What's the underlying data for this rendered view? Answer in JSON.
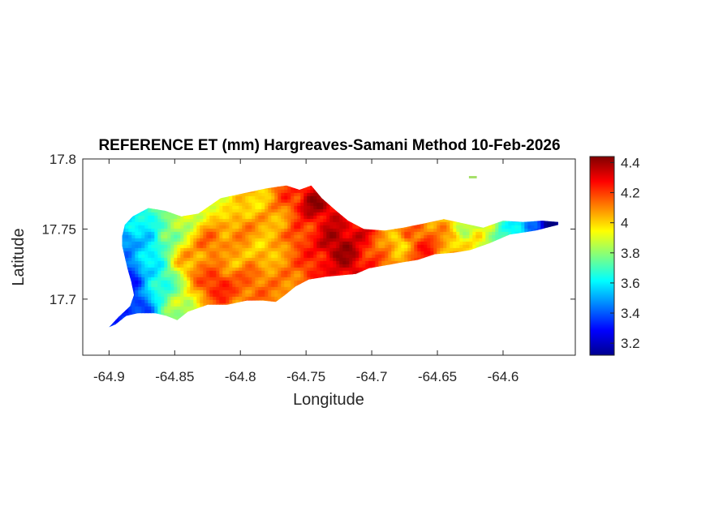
{
  "chart_data": {
    "type": "heatmap",
    "title": "REFERENCE ET (mm) Hargreaves-Samani Method  10-Feb-2026",
    "xlabel": "Longitude",
    "ylabel": "Latitude",
    "xlim": [
      -64.92,
      -64.545
    ],
    "ylim": [
      17.66,
      17.8
    ],
    "xticks": [
      -64.9,
      -64.85,
      -64.8,
      -64.75,
      -64.7,
      -64.65,
      -64.6
    ],
    "xtick_labels": [
      "-64.9",
      "-64.85",
      "-64.8",
      "-64.75",
      "-64.7",
      "-64.65",
      "-64.6"
    ],
    "yticks": [
      17.7,
      17.75,
      17.8
    ],
    "ytick_labels": [
      "17.7",
      "17.75",
      "17.8"
    ],
    "colorbar": {
      "colormap": "jet",
      "range": [
        3.12,
        4.44
      ],
      "ticks": [
        3.2,
        3.4,
        3.6,
        3.8,
        4.0,
        4.2,
        4.4
      ],
      "tick_labels": [
        "3.2",
        "3.4",
        "3.6",
        "3.8",
        "4",
        "4.2",
        "4.4"
      ]
    },
    "grid": false,
    "outline": [
      [
        -64.9,
        17.68
      ],
      [
        -64.893,
        17.687
      ],
      [
        -64.884,
        17.695
      ],
      [
        -64.881,
        17.703
      ],
      [
        -64.883,
        17.712
      ],
      [
        -64.886,
        17.722
      ],
      [
        -64.888,
        17.73
      ],
      [
        -64.89,
        17.738
      ],
      [
        -64.89,
        17.745
      ],
      [
        -64.888,
        17.753
      ],
      [
        -64.882,
        17.759
      ],
      [
        -64.87,
        17.765
      ],
      [
        -64.857,
        17.763
      ],
      [
        -64.845,
        17.759
      ],
      [
        -64.832,
        17.761
      ],
      [
        -64.815,
        17.772
      ],
      [
        -64.795,
        17.776
      ],
      [
        -64.78,
        17.779
      ],
      [
        -64.765,
        17.781
      ],
      [
        -64.755,
        17.778
      ],
      [
        -64.746,
        17.781
      ],
      [
        -64.738,
        17.772
      ],
      [
        -64.727,
        17.763
      ],
      [
        -64.718,
        17.756
      ],
      [
        -64.706,
        17.75
      ],
      [
        -64.69,
        17.749
      ],
      [
        -64.676,
        17.751
      ],
      [
        -64.66,
        17.754
      ],
      [
        -64.645,
        17.757
      ],
      [
        -64.63,
        17.754
      ],
      [
        -64.615,
        17.751
      ],
      [
        -64.6,
        17.756
      ],
      [
        -64.585,
        17.755
      ],
      [
        -64.57,
        17.756
      ],
      [
        -64.558,
        17.755
      ],
      [
        -64.558,
        17.753
      ],
      [
        -64.575,
        17.749
      ],
      [
        -64.595,
        17.746
      ],
      [
        -64.61,
        17.74
      ],
      [
        -64.625,
        17.735
      ],
      [
        -64.638,
        17.733
      ],
      [
        -64.652,
        17.732
      ],
      [
        -64.665,
        17.728
      ],
      [
        -64.678,
        17.726
      ],
      [
        -64.69,
        17.724
      ],
      [
        -64.702,
        17.722
      ],
      [
        -64.712,
        17.718
      ],
      [
        -64.723,
        17.717
      ],
      [
        -64.735,
        17.716
      ],
      [
        -64.748,
        17.714
      ],
      [
        -64.758,
        17.709
      ],
      [
        -64.766,
        17.703
      ],
      [
        -64.773,
        17.698
      ],
      [
        -64.783,
        17.699
      ],
      [
        -64.795,
        17.699
      ],
      [
        -64.81,
        17.696
      ],
      [
        -64.825,
        17.696
      ],
      [
        -64.84,
        17.691
      ],
      [
        -64.848,
        17.685
      ],
      [
        -64.856,
        17.688
      ],
      [
        -64.865,
        17.69
      ],
      [
        -64.878,
        17.69
      ],
      [
        -64.887,
        17.688
      ],
      [
        -64.895,
        17.682
      ],
      [
        -64.9,
        17.68
      ]
    ],
    "islet": [
      [
        -64.626,
        17.787
      ],
      [
        -64.62,
        17.787
      ]
    ],
    "field_points": [
      [
        -64.885,
        17.715,
        3.3
      ],
      [
        -64.878,
        17.695,
        3.35
      ],
      [
        -64.892,
        17.69,
        3.3
      ],
      [
        -64.89,
        17.74,
        3.45
      ],
      [
        -64.878,
        17.755,
        3.6
      ],
      [
        -64.87,
        17.74,
        3.55
      ],
      [
        -64.866,
        17.72,
        3.6
      ],
      [
        -64.858,
        17.708,
        3.65
      ],
      [
        -64.855,
        17.745,
        3.75
      ],
      [
        -64.85,
        17.7,
        3.85
      ],
      [
        -64.845,
        17.76,
        3.85
      ],
      [
        -64.842,
        17.73,
        4.05
      ],
      [
        -64.83,
        17.718,
        4.15
      ],
      [
        -64.823,
        17.74,
        4.15
      ],
      [
        -64.818,
        17.71,
        4.25
      ],
      [
        -64.812,
        17.765,
        3.95
      ],
      [
        -64.808,
        17.73,
        4.05
      ],
      [
        -64.8,
        17.75,
        4.1
      ],
      [
        -64.793,
        17.712,
        4.15
      ],
      [
        -64.788,
        17.77,
        4.0
      ],
      [
        -64.781,
        17.735,
        4.0
      ],
      [
        -64.773,
        17.755,
        4.05
      ],
      [
        -64.768,
        17.715,
        4.1
      ],
      [
        -64.76,
        17.775,
        4.2
      ],
      [
        -64.752,
        17.745,
        4.2
      ],
      [
        -64.745,
        17.77,
        4.4
      ],
      [
        -64.738,
        17.725,
        4.25
      ],
      [
        -64.728,
        17.74,
        4.4
      ],
      [
        -64.718,
        17.73,
        4.4
      ],
      [
        -64.708,
        17.745,
        4.3
      ],
      [
        -64.7,
        17.728,
        4.2
      ],
      [
        -64.69,
        17.735,
        4.1
      ],
      [
        -64.68,
        17.74,
        3.95
      ],
      [
        -64.67,
        17.745,
        4.15
      ],
      [
        -64.66,
        17.738,
        4.25
      ],
      [
        -64.65,
        17.748,
        4.1
      ],
      [
        -64.64,
        17.742,
        4.05
      ],
      [
        -64.63,
        17.75,
        3.85
      ],
      [
        -64.62,
        17.745,
        3.95
      ],
      [
        -64.61,
        17.748,
        3.85
      ],
      [
        -64.6,
        17.748,
        3.7
      ],
      [
        -64.59,
        17.752,
        3.6
      ],
      [
        -64.578,
        17.752,
        3.4
      ],
      [
        -64.565,
        17.754,
        3.15
      ]
    ]
  }
}
